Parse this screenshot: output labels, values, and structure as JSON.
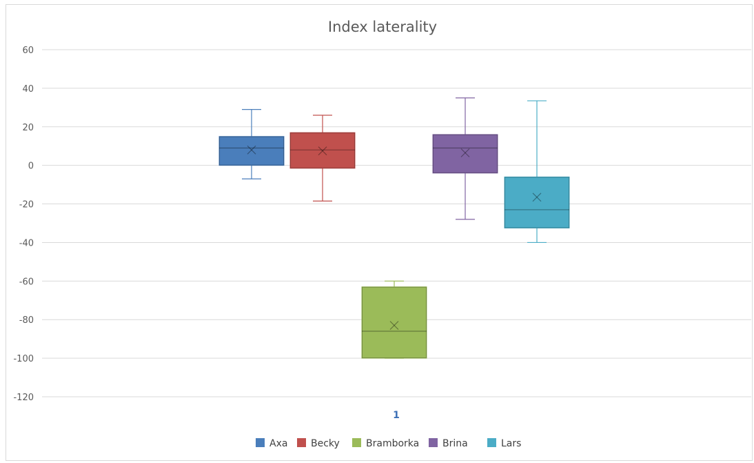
{
  "chart_data": {
    "type": "box",
    "title": "Index laterality",
    "xlabel": "",
    "ylabel": "",
    "ylim": [
      -120,
      60
    ],
    "yticks": [
      60,
      40,
      20,
      0,
      -20,
      -40,
      -60,
      -80,
      -100,
      -120
    ],
    "categories": [
      "1"
    ],
    "grid": true,
    "legend_position": "bottom",
    "series": [
      {
        "name": "Axa",
        "color": "#4a7ebb",
        "min": -7,
        "q1": 0,
        "median": 9,
        "q3": 15,
        "max": 29,
        "mean": 8
      },
      {
        "name": "Becky",
        "color": "#c0504d",
        "min": -18.5,
        "q1": -1.5,
        "median": 8,
        "q3": 17,
        "max": 26,
        "mean": 7.5
      },
      {
        "name": "Bramborka",
        "color": "#9bbb59",
        "min": -100,
        "q1": -100,
        "median": -86,
        "q3": -63,
        "max": -60,
        "mean": -83
      },
      {
        "name": "Brina",
        "color": "#8064a2",
        "min": -28,
        "q1": -4,
        "median": 9,
        "q3": 16,
        "max": 35,
        "mean": 6.5
      },
      {
        "name": "Lars",
        "color": "#4bacc6",
        "min": -40,
        "q1": -32.5,
        "median": -23,
        "q3": -6,
        "max": 33.5,
        "mean": -16.5
      }
    ]
  }
}
